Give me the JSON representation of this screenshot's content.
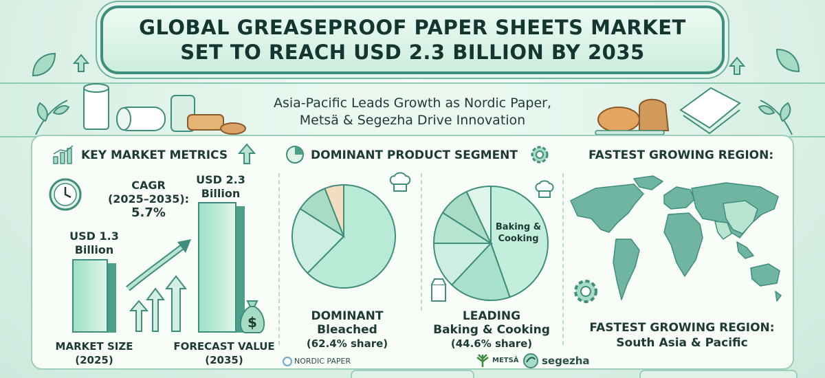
{
  "title": {
    "line1": "GLOBAL GREASEPROOF PAPER SHEETS MARKET",
    "line2": "SET TO REACH USD 2.3 BILLION BY 2035"
  },
  "subtitle": {
    "line1": "Asia-Pacific Leads Growth as Nordic Paper,",
    "line2": "Metsä & Segezha Drive Innovation"
  },
  "metrics": {
    "heading": "KEY MARKET METRICS",
    "cagr_label": "CAGR",
    "cagr_period": "(2025–2035):",
    "cagr_value": "5.7%",
    "bar1_value_line1": "USD 1.3",
    "bar1_value_line2": "Billion",
    "bar2_value_line1": "USD 2.3",
    "bar2_value_line2": "Billion",
    "bar1_caption_line1": "MARKET SIZE",
    "bar1_caption_line2": "(2025)",
    "bar2_caption_line1": "FORECAST VALUE",
    "bar2_caption_line2": "(2035)"
  },
  "segment": {
    "heading": "DOMINANT PRODUCT SEGMENT",
    "pie1_caption_line1": "DOMINANT",
    "pie1_caption_line2": "Bleached",
    "pie1_caption_line3": "(62.4% share)",
    "pie2_caption_line1": "LEADING",
    "pie2_caption_line2": "Baking & Cooking",
    "pie2_caption_line3": "(44.6% share)",
    "pie2_inner_line1": "Baking &",
    "pie2_inner_line2": "Cooking"
  },
  "region": {
    "heading": "FASTEST GROWING REGION:",
    "caption_line1": "FASTEST GROWING REGION:",
    "caption_line2": "South Asia & Pacific"
  },
  "logos": {
    "nordic": "NORDIC PAPER",
    "metsa": "METSÄ",
    "segezha": "segezha"
  },
  "colors": {
    "accent": "#3f8d7c",
    "highlight": "#9fe0c6",
    "background": "#e4f4ec"
  },
  "chart_data": [
    {
      "type": "bar",
      "categories": [
        "MARKET SIZE (2025)",
        "FORECAST VALUE (2035)"
      ],
      "values": [
        1.3,
        2.3
      ],
      "ylabel": "",
      "ylim": [
        0,
        2.3
      ]
    },
    {
      "type": "pie",
      "categories": [
        "Bleached",
        "",
        "",
        ""
      ],
      "values": [
        62.4,
        21.6,
        10.0,
        6.0
      ],
      "highlight": "Bleached"
    },
    {
      "type": "pie",
      "categories": [
        "Baking & Cooking",
        "",
        "",
        "",
        "",
        ""
      ],
      "values": [
        44.6,
        17.4,
        13.0,
        9.0,
        9.0,
        7.0
      ],
      "highlight": "Baking & Cooking"
    }
  ]
}
